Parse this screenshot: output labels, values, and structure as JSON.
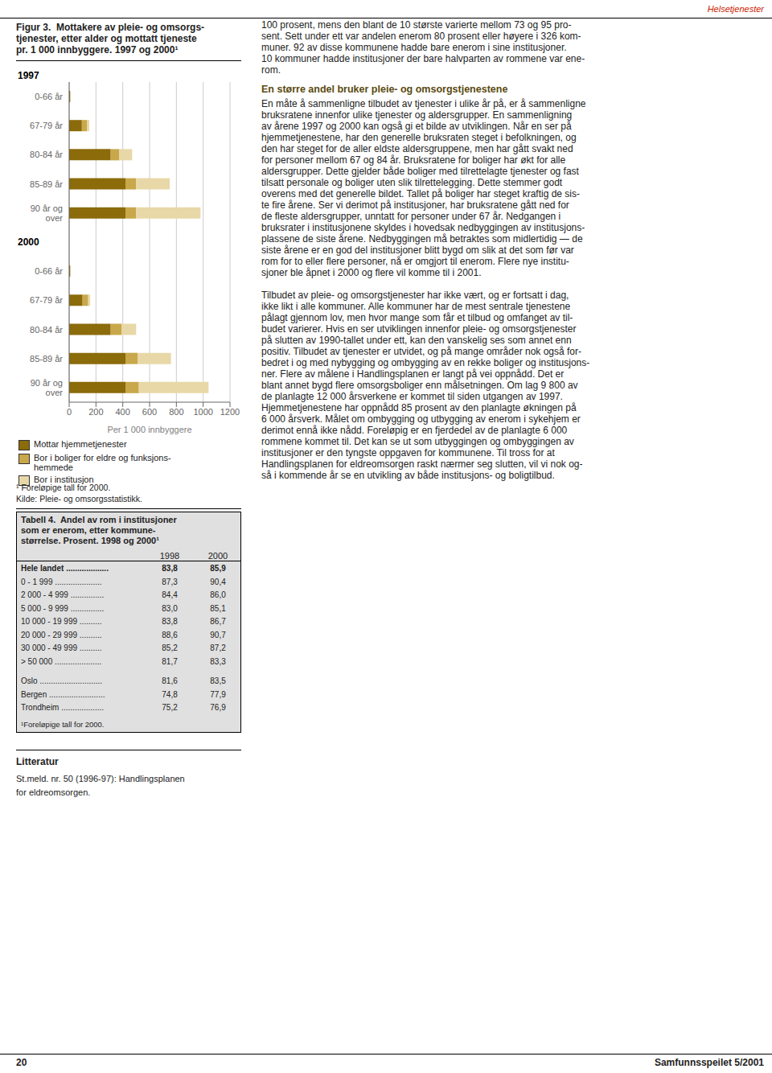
{
  "chart_data": {
    "type": "bar",
    "orientation": "horizontal",
    "stacked": true,
    "title": "Figur 3.  Mottakere av pleie- og omsorgs-\ntjenester, etter alder og mottatt tjeneste\npr. 1 000 innbyggere. 1997 og 2000¹",
    "categories": [
      "0-66 år",
      "67-79 år",
      "80-84 år",
      "85-89 år",
      "90 år og\nover",
      null,
      "0-66 år",
      "67-79 år",
      "80-84 år",
      "85-89 år",
      "90 år og\nover"
    ],
    "group_labels": [
      "1997",
      "2000"
    ],
    "series": [
      {
        "name": "Mottar hjemmetjenester",
        "color": "#8B6B0A",
        "values": [
          8,
          95,
          310,
          420,
          420,
          null,
          8,
          100,
          310,
          420,
          420
        ]
      },
      {
        "name": "Bor i boliger for eldre og funksjons-\nhemmede",
        "color": "#C8A84B",
        "values": [
          0,
          40,
          65,
          80,
          80,
          null,
          0,
          42,
          80,
          90,
          100
        ]
      },
      {
        "name": "Bor i institusjon",
        "color": "#E8D8A8",
        "values": [
          0,
          15,
          95,
          250,
          480,
          null,
          0,
          15,
          110,
          250,
          520
        ]
      }
    ],
    "xlabel": "Per 1 000 innbyggere",
    "xlim": [
      0,
      1200
    ],
    "xticks": [
      0,
      200,
      400,
      600,
      800,
      1000,
      1200
    ],
    "grid": true,
    "legend": "bottom",
    "footnotes": [
      "¹ Foreløpige tall for 2000.",
      "Kilde: Pleie- og omsorgsstatistikk."
    ]
  },
  "page": {
    "header": "Helsetjenester",
    "page_number": "20",
    "journal": "Samfunnsspeilet 5/2001",
    "table": {
      "title": "Tabell 4.  Andel av rom i institusjoner\nsom er enerom, etter kommune-\nstørrelse. Prosent. 1998 og 2000¹",
      "columns": [
        "1998",
        "2000"
      ],
      "row_groups": [
        [
          {
            "label": "Hele landet ...................",
            "values": [
              "83,8",
              "85,9"
            ]
          },
          {
            "label": "0 - 1 999 .....................",
            "values": [
              "87,3",
              "90,4"
            ]
          },
          {
            "label": "2 000 - 4 999 ...............",
            "values": [
              "84,4",
              "86,0"
            ]
          },
          {
            "label": "5 000 - 9 999 ...............",
            "values": [
              "83,0",
              "85,1"
            ]
          },
          {
            "label": "10 000 - 19 999 ..........",
            "values": [
              "83,8",
              "86,7"
            ]
          },
          {
            "label": "20 000 - 29 999 ..........",
            "values": [
              "88,6",
              "90,7"
            ]
          },
          {
            "label": "30 000 - 49 999 ..........",
            "values": [
              "85,2",
              "87,2"
            ]
          },
          {
            "label": "> 50 000 .....................",
            "values": [
              "81,7",
              "83,3"
            ]
          }
        ],
        [
          {
            "label": "Oslo ............................",
            "values": [
              "81,6",
              "83,5"
            ]
          },
          {
            "label": "Bergen .........................",
            "values": [
              "74,8",
              "77,9"
            ]
          },
          {
            "label": "Trondheim ...................",
            "values": [
              "75,2",
              "76,9"
            ]
          }
        ]
      ],
      "footnote": "¹Foreløpige tall for 2000."
    },
    "literature": {
      "header": "Litteratur",
      "body": "St.meld. nr. 50 (1996-97): Handlingsplanen\nfor eldreomsorgen."
    },
    "text": {
      "para1": [
        "100 prosent, mens den blant de 10 største varierte mellom 73 og 95 pro-",
        "sent. Sett under ett var andelen enerom 80 prosent eller høyere i 326 kom-",
        "muner. 92 av disse kommunene hadde bare enerom i sine institusjoner.",
        "10 kommuner hadde institusjoner der bare halvparten av rommene var ene-",
        "rom."
      ],
      "heading": "En større andel bruker pleie- og omsorgstjenestene",
      "para2": [
        "En måte å sammenligne tilbudet av tjenester i ulike år på, er å sammenligne",
        "bruksratene innenfor ulike tjenester og aldersgrupper. En sammenligning",
        "av årene 1997 og 2000 kan også gi et bilde av utviklingen. Når en ser på",
        "hjemmetjenestene, har den generelle bruksraten steget i befolkningen, og",
        "den har steget for de aller eldste aldersgruppene, men har gått svakt ned",
        "for personer mellom 67 og 84 år. Bruksratene for boliger har økt for alle",
        "aldersgrupper. Dette gjelder både boliger med tilrettelagte tjenester og fast",
        "tilsatt personale og boliger uten slik tilrettelegging. Dette stemmer godt",
        "overens med det generelle bildet. Tallet på boliger har steget kraftig de sis-",
        "te fire årene. Ser vi derimot på institusjoner, har bruksratene gått ned for",
        "de fleste aldersgrupper, unntatt for personer under 67 år. Nedgangen i",
        "bruksrater i institusjonene skyldes i hovedsak nedbyggingen av institusjons-",
        "plassene de siste årene. Nedbyggingen må betraktes som midlertidig — de",
        "siste årene er en god del institusjoner blitt bygd om slik at det som før var",
        "rom for to eller flere personer, nå er omgjort til enerom. Flere nye institu-",
        "sjoner ble åpnet i 2000 og flere vil komme til i 2001."
      ],
      "para3": [
        "Tilbudet av pleie- og omsorgstjenester har ikke vært, og er fortsatt i dag,",
        "ikke likt i alle kommuner. Alle kommuner har de mest sentrale tjenestene",
        "pålagt gjennom lov, men hvor mange som får et tilbud og omfanget av til-",
        "budet varierer. Hvis en ser utviklingen innenfor pleie- og omsorgstjenester",
        "på slutten av 1990-tallet under ett, kan den vanskelig ses som annet enn",
        "positiv. Tilbudet av tjenester er utvidet, og på mange områder nok også for-",
        "bedret i og med nybygging og ombygging av en rekke boliger og institusjons-",
        "ner. Flere av målene i Handlingsplanen er langt på vei oppnådd. Det er",
        "blant annet bygd flere omsorgsboliger enn målsetningen. Om lag 9 800 av",
        "de planlagte 12 000 årsverkene er kommet til siden utgangen av 1997.",
        "Hjemmetjenestene har oppnådd 85 prosent av den planlagte økningen på",
        "6 000 årsverk. Målet om ombygging og utbygging av enerom i sykehjem er",
        "derimot ennå ikke nådd. Foreløpig er en fjerdedel av de planlagte 6 000",
        "rommene kommet til. Det kan se ut som utbyggingen og ombyggingen av",
        "institusjoner er den tyngste oppgaven for kommunene. Til tross for at",
        "Handlingsplanen for eldreomsorgen raskt nærmer seg slutten, vil vi nok og-",
        "så i kommende år se en utvikling av både institusjons- og boligtilbud."
      ]
    }
  }
}
